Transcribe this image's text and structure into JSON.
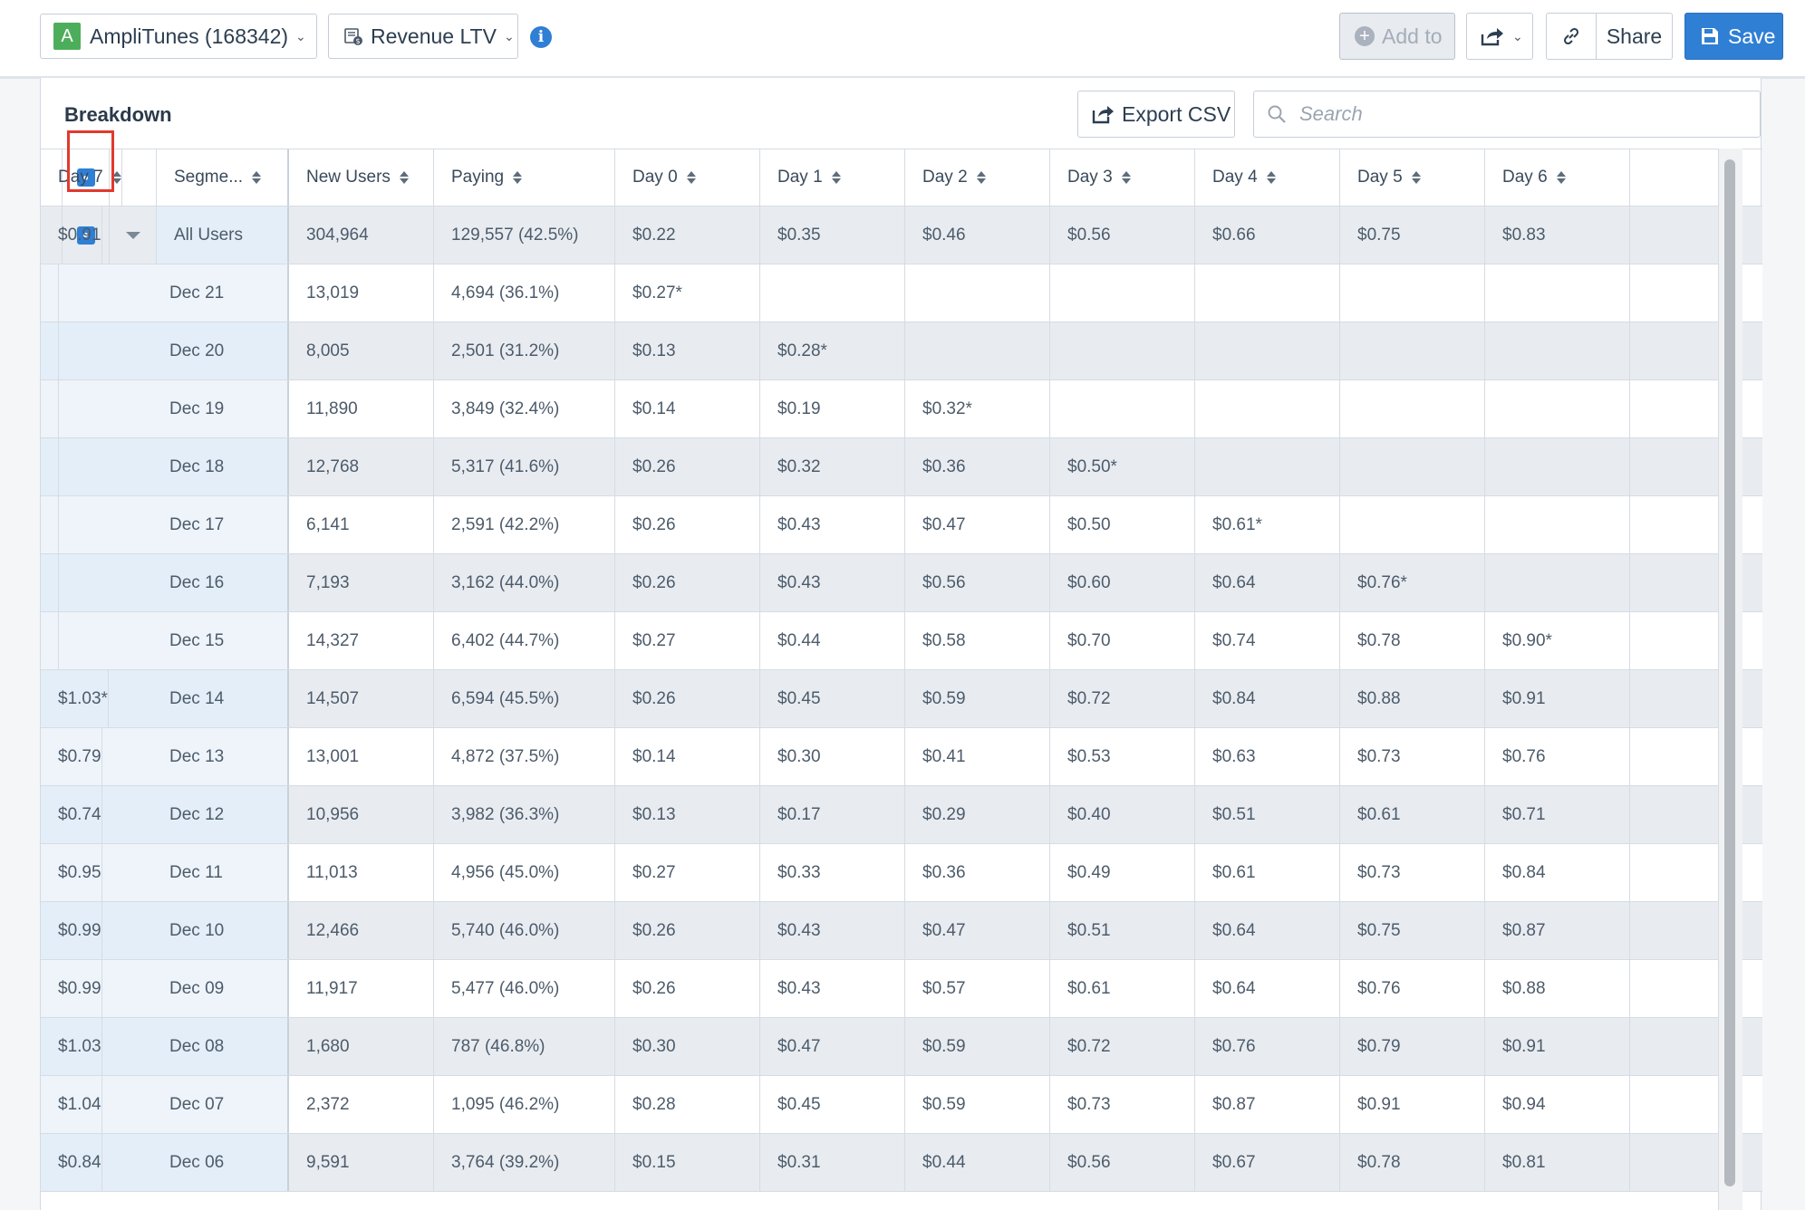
{
  "toolbar": {
    "project_badge": "A",
    "project_label": "AmpliTunes (168342)",
    "metric_label": "Revenue LTV",
    "info_glyph": "i",
    "add_to_label": "Add to",
    "share_label": "Share",
    "save_label": "Save"
  },
  "panel": {
    "title": "Breakdown",
    "export_label": "Export CSV",
    "search_placeholder": "Search"
  },
  "table": {
    "columns": [
      "Segme...",
      "New Users",
      "Paying",
      "Day 0",
      "Day 1",
      "Day 2",
      "Day 3",
      "Day 4",
      "Day 5",
      "Day 6",
      "Day 7"
    ],
    "summary": {
      "segment": "All Users",
      "new_users": "304,964",
      "paying": "129,557 (42.5%)",
      "days": [
        "$0.22",
        "$0.35",
        "$0.46",
        "$0.56",
        "$0.66",
        "$0.75",
        "$0.83",
        "$0.91"
      ]
    },
    "rows": [
      {
        "date": "Dec 21",
        "new_users": "13,019",
        "paying": "4,694 (36.1%)",
        "days": [
          "$0.27*",
          "",
          "",
          "",
          "",
          "",
          "",
          ""
        ]
      },
      {
        "date": "Dec 20",
        "new_users": "8,005",
        "paying": "2,501 (31.2%)",
        "days": [
          "$0.13",
          "$0.28*",
          "",
          "",
          "",
          "",
          "",
          ""
        ]
      },
      {
        "date": "Dec 19",
        "new_users": "11,890",
        "paying": "3,849 (32.4%)",
        "days": [
          "$0.14",
          "$0.19",
          "$0.32*",
          "",
          "",
          "",
          "",
          ""
        ]
      },
      {
        "date": "Dec 18",
        "new_users": "12,768",
        "paying": "5,317 (41.6%)",
        "days": [
          "$0.26",
          "$0.32",
          "$0.36",
          "$0.50*",
          "",
          "",
          "",
          ""
        ]
      },
      {
        "date": "Dec 17",
        "new_users": "6,141",
        "paying": "2,591 (42.2%)",
        "days": [
          "$0.26",
          "$0.43",
          "$0.47",
          "$0.50",
          "$0.61*",
          "",
          "",
          ""
        ]
      },
      {
        "date": "Dec 16",
        "new_users": "7,193",
        "paying": "3,162 (44.0%)",
        "days": [
          "$0.26",
          "$0.43",
          "$0.56",
          "$0.60",
          "$0.64",
          "$0.76*",
          "",
          ""
        ]
      },
      {
        "date": "Dec 15",
        "new_users": "14,327",
        "paying": "6,402 (44.7%)",
        "days": [
          "$0.27",
          "$0.44",
          "$0.58",
          "$0.70",
          "$0.74",
          "$0.78",
          "$0.90*",
          ""
        ]
      },
      {
        "date": "Dec 14",
        "new_users": "14,507",
        "paying": "6,594 (45.5%)",
        "days": [
          "$0.26",
          "$0.45",
          "$0.59",
          "$0.72",
          "$0.84",
          "$0.88",
          "$0.91",
          "$1.03*"
        ]
      },
      {
        "date": "Dec 13",
        "new_users": "13,001",
        "paying": "4,872 (37.5%)",
        "days": [
          "$0.14",
          "$0.30",
          "$0.41",
          "$0.53",
          "$0.63",
          "$0.73",
          "$0.76",
          "$0.79"
        ]
      },
      {
        "date": "Dec 12",
        "new_users": "10,956",
        "paying": "3,982 (36.3%)",
        "days": [
          "$0.13",
          "$0.17",
          "$0.29",
          "$0.40",
          "$0.51",
          "$0.61",
          "$0.71",
          "$0.74"
        ]
      },
      {
        "date": "Dec 11",
        "new_users": "11,013",
        "paying": "4,956 (45.0%)",
        "days": [
          "$0.27",
          "$0.33",
          "$0.36",
          "$0.49",
          "$0.61",
          "$0.73",
          "$0.84",
          "$0.95"
        ]
      },
      {
        "date": "Dec 10",
        "new_users": "12,466",
        "paying": "5,740 (46.0%)",
        "days": [
          "$0.26",
          "$0.43",
          "$0.47",
          "$0.51",
          "$0.64",
          "$0.75",
          "$0.87",
          "$0.99"
        ]
      },
      {
        "date": "Dec 09",
        "new_users": "11,917",
        "paying": "5,477 (46.0%)",
        "days": [
          "$0.26",
          "$0.43",
          "$0.57",
          "$0.61",
          "$0.64",
          "$0.76",
          "$0.88",
          "$0.99"
        ]
      },
      {
        "date": "Dec 08",
        "new_users": "1,680",
        "paying": "787 (46.8%)",
        "days": [
          "$0.30",
          "$0.47",
          "$0.59",
          "$0.72",
          "$0.76",
          "$0.79",
          "$0.91",
          "$1.03"
        ]
      },
      {
        "date": "Dec 07",
        "new_users": "2,372",
        "paying": "1,095 (46.2%)",
        "days": [
          "$0.28",
          "$0.45",
          "$0.59",
          "$0.73",
          "$0.87",
          "$0.91",
          "$0.94",
          "$1.04"
        ]
      },
      {
        "date": "Dec 06",
        "new_users": "9,591",
        "paying": "3,764 (39.2%)",
        "days": [
          "$0.15",
          "$0.31",
          "$0.44",
          "$0.56",
          "$0.67",
          "$0.78",
          "$0.81",
          "$0.84"
        ]
      }
    ]
  },
  "colors": {
    "accent": "#2f7fd4",
    "project_badge": "#4cae5b",
    "highlight": "#e2392d",
    "stripe": "#e8ecf1"
  },
  "icons": {
    "info": "info-icon",
    "add": "plus-circle-icon",
    "share": "share-arrow-icon",
    "link": "link-icon",
    "save": "floppy-disk-icon",
    "export": "export-icon",
    "search": "search-icon",
    "sort": "sort-icon",
    "expand": "caret-down-icon"
  }
}
